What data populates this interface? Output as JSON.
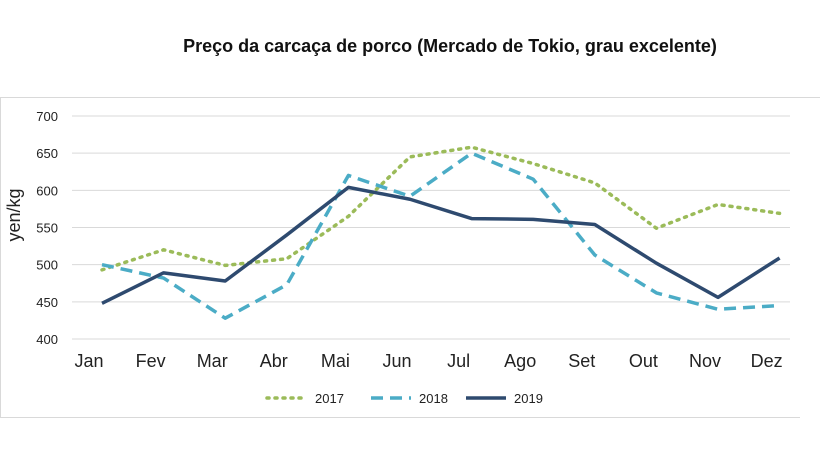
{
  "chart_data": {
    "type": "line",
    "title": "Preço da carcaça de porco (Mercado de Tokio, grau excelente)",
    "xlabel": "",
    "ylabel": "yen/kg",
    "categories": [
      "Jan",
      "Fev",
      "Mar",
      "Abr",
      "Mai",
      "Jun",
      "Jul",
      "Ago",
      "Set",
      "Out",
      "Nov",
      "Dez"
    ],
    "ylim": [
      400,
      700
    ],
    "yticks": [
      400,
      450,
      500,
      550,
      600,
      650,
      700
    ],
    "grid": true,
    "legend": "bottom",
    "series": [
      {
        "name": "2017",
        "color": "#9bbb59",
        "style": "dotted",
        "values": [
          493,
          520,
          499,
          508,
          565,
          645,
          658,
          636,
          610,
          549,
          581,
          569
        ]
      },
      {
        "name": "2018",
        "color": "#4bacc6",
        "style": "dashed",
        "values": [
          500,
          482,
          428,
          473,
          620,
          592,
          650,
          615,
          513,
          462,
          440,
          445
        ]
      },
      {
        "name": "2019",
        "color": "#2e4a6f",
        "style": "solid",
        "values": [
          448,
          489,
          478,
          540,
          604,
          588,
          562,
          561,
          554,
          502,
          456,
          509
        ]
      }
    ]
  }
}
